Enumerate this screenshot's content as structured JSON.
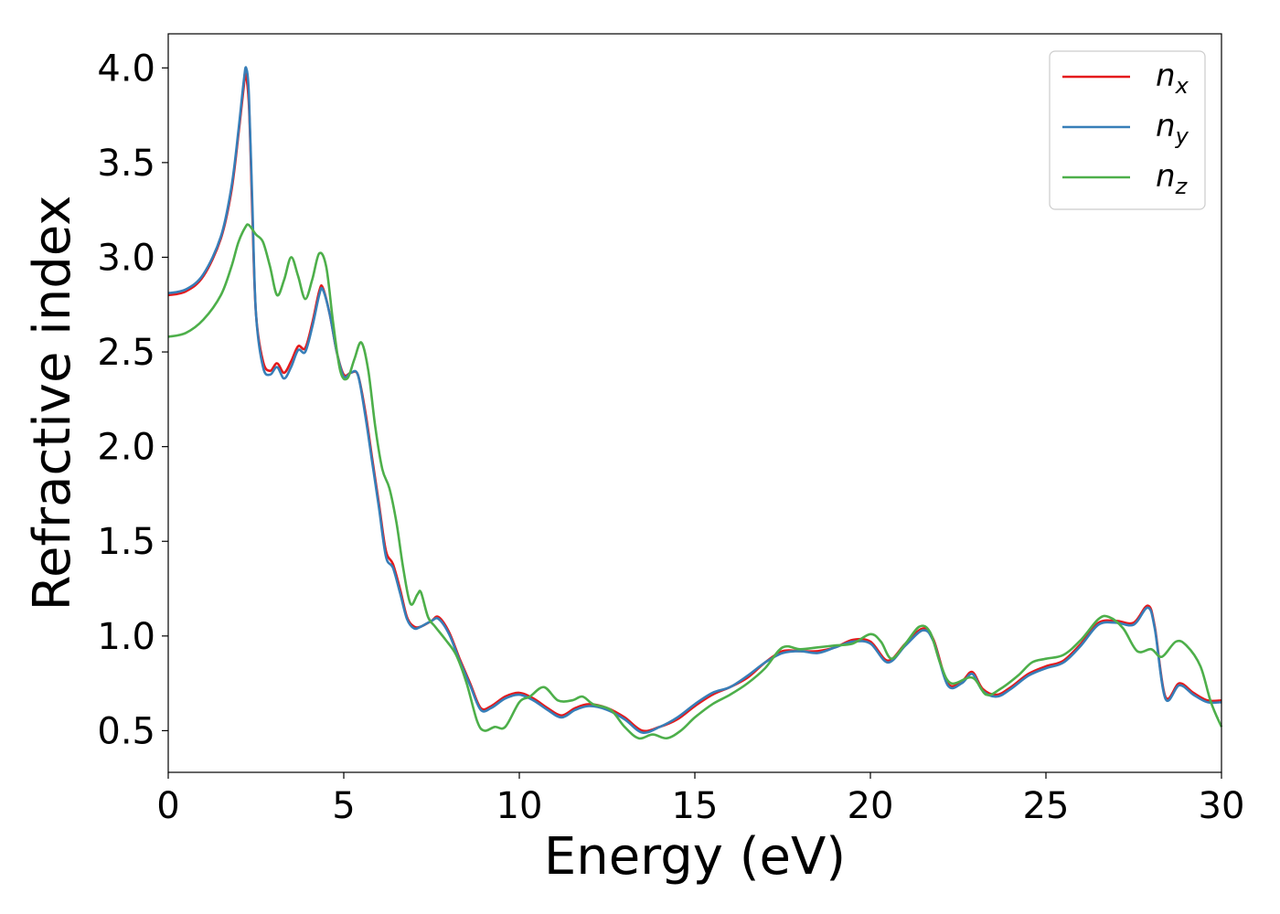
{
  "chart_data": {
    "type": "line",
    "xlabel": "Energy (eV)",
    "ylabel": "Refractive index",
    "xlim": [
      0,
      30
    ],
    "ylim": [
      0.28,
      4.18
    ],
    "xticks": [
      0,
      5,
      10,
      15,
      20,
      25,
      30
    ],
    "xtick_labels": [
      "0",
      "5",
      "10",
      "15",
      "20",
      "25",
      "30"
    ],
    "yticks": [
      0.5,
      1.0,
      1.5,
      2.0,
      2.5,
      3.0,
      3.5,
      4.0
    ],
    "ytick_labels": [
      "0.5",
      "1.0",
      "1.5",
      "2.0",
      "2.5",
      "3.0",
      "3.5",
      "4.0"
    ],
    "grid": false,
    "legend_position": "top-right",
    "series": [
      {
        "name": "n_x",
        "label_base": "n",
        "label_sub": "x",
        "color": "#e41a1c",
        "points": [
          [
            0,
            2.8
          ],
          [
            0.5,
            2.82
          ],
          [
            1.0,
            2.9
          ],
          [
            1.5,
            3.1
          ],
          [
            1.8,
            3.35
          ],
          [
            2.0,
            3.65
          ],
          [
            2.15,
            3.9
          ],
          [
            2.2,
            3.97
          ],
          [
            2.3,
            3.8
          ],
          [
            2.4,
            3.2
          ],
          [
            2.5,
            2.7
          ],
          [
            2.7,
            2.45
          ],
          [
            2.9,
            2.4
          ],
          [
            3.1,
            2.44
          ],
          [
            3.3,
            2.39
          ],
          [
            3.5,
            2.45
          ],
          [
            3.7,
            2.53
          ],
          [
            3.9,
            2.52
          ],
          [
            4.1,
            2.65
          ],
          [
            4.3,
            2.82
          ],
          [
            4.4,
            2.84
          ],
          [
            4.6,
            2.7
          ],
          [
            4.8,
            2.5
          ],
          [
            5.0,
            2.38
          ],
          [
            5.2,
            2.39
          ],
          [
            5.4,
            2.38
          ],
          [
            5.6,
            2.2
          ],
          [
            5.8,
            1.95
          ],
          [
            6.0,
            1.7
          ],
          [
            6.2,
            1.45
          ],
          [
            6.4,
            1.38
          ],
          [
            6.6,
            1.25
          ],
          [
            6.8,
            1.1
          ],
          [
            7.0,
            1.05
          ],
          [
            7.2,
            1.05
          ],
          [
            7.5,
            1.08
          ],
          [
            7.7,
            1.1
          ],
          [
            8.0,
            1.02
          ],
          [
            8.3,
            0.88
          ],
          [
            8.6,
            0.75
          ],
          [
            8.9,
            0.62
          ],
          [
            9.2,
            0.63
          ],
          [
            9.6,
            0.68
          ],
          [
            10.0,
            0.7
          ],
          [
            10.4,
            0.67
          ],
          [
            10.8,
            0.62
          ],
          [
            11.2,
            0.58
          ],
          [
            11.6,
            0.62
          ],
          [
            12.0,
            0.64
          ],
          [
            12.5,
            0.62
          ],
          [
            13.0,
            0.57
          ],
          [
            13.5,
            0.5
          ],
          [
            14.0,
            0.52
          ],
          [
            14.5,
            0.56
          ],
          [
            15.0,
            0.63
          ],
          [
            15.5,
            0.69
          ],
          [
            16.0,
            0.73
          ],
          [
            16.5,
            0.78
          ],
          [
            17.0,
            0.86
          ],
          [
            17.5,
            0.92
          ],
          [
            18.0,
            0.92
          ],
          [
            18.5,
            0.92
          ],
          [
            19.0,
            0.94
          ],
          [
            19.5,
            0.98
          ],
          [
            20.0,
            0.97
          ],
          [
            20.5,
            0.87
          ],
          [
            21.0,
            0.96
          ],
          [
            21.5,
            1.04
          ],
          [
            21.8,
            0.98
          ],
          [
            22.2,
            0.75
          ],
          [
            22.6,
            0.76
          ],
          [
            22.9,
            0.81
          ],
          [
            23.2,
            0.72
          ],
          [
            23.6,
            0.69
          ],
          [
            24.0,
            0.73
          ],
          [
            24.5,
            0.8
          ],
          [
            25.0,
            0.84
          ],
          [
            25.5,
            0.87
          ],
          [
            26.0,
            0.96
          ],
          [
            26.5,
            1.07
          ],
          [
            27.0,
            1.08
          ],
          [
            27.5,
            1.07
          ],
          [
            27.9,
            1.16
          ],
          [
            28.1,
            1.05
          ],
          [
            28.4,
            0.68
          ],
          [
            28.8,
            0.75
          ],
          [
            29.2,
            0.7
          ],
          [
            29.6,
            0.66
          ],
          [
            30.0,
            0.66
          ]
        ]
      },
      {
        "name": "n_y",
        "label_base": "n",
        "label_sub": "y",
        "color": "#377eb8",
        "points": [
          [
            0,
            2.81
          ],
          [
            0.5,
            2.83
          ],
          [
            1.0,
            2.91
          ],
          [
            1.5,
            3.11
          ],
          [
            1.8,
            3.37
          ],
          [
            2.0,
            3.67
          ],
          [
            2.15,
            3.93
          ],
          [
            2.22,
            4.0
          ],
          [
            2.3,
            3.85
          ],
          [
            2.4,
            3.25
          ],
          [
            2.5,
            2.7
          ],
          [
            2.7,
            2.42
          ],
          [
            2.9,
            2.38
          ],
          [
            3.1,
            2.42
          ],
          [
            3.3,
            2.36
          ],
          [
            3.5,
            2.42
          ],
          [
            3.7,
            2.51
          ],
          [
            3.9,
            2.5
          ],
          [
            4.1,
            2.63
          ],
          [
            4.3,
            2.8
          ],
          [
            4.4,
            2.83
          ],
          [
            4.6,
            2.7
          ],
          [
            4.8,
            2.5
          ],
          [
            5.0,
            2.37
          ],
          [
            5.2,
            2.39
          ],
          [
            5.4,
            2.38
          ],
          [
            5.6,
            2.18
          ],
          [
            5.8,
            1.93
          ],
          [
            6.0,
            1.68
          ],
          [
            6.2,
            1.42
          ],
          [
            6.4,
            1.36
          ],
          [
            6.6,
            1.23
          ],
          [
            6.8,
            1.09
          ],
          [
            7.0,
            1.04
          ],
          [
            7.2,
            1.05
          ],
          [
            7.5,
            1.08
          ],
          [
            7.7,
            1.09
          ],
          [
            8.0,
            1.01
          ],
          [
            8.3,
            0.87
          ],
          [
            8.6,
            0.74
          ],
          [
            8.9,
            0.61
          ],
          [
            9.2,
            0.62
          ],
          [
            9.6,
            0.67
          ],
          [
            10.0,
            0.69
          ],
          [
            10.4,
            0.66
          ],
          [
            10.8,
            0.61
          ],
          [
            11.2,
            0.57
          ],
          [
            11.6,
            0.61
          ],
          [
            12.0,
            0.63
          ],
          [
            12.5,
            0.61
          ],
          [
            13.0,
            0.56
          ],
          [
            13.5,
            0.49
          ],
          [
            14.0,
            0.52
          ],
          [
            14.5,
            0.57
          ],
          [
            15.0,
            0.64
          ],
          [
            15.5,
            0.7
          ],
          [
            16.0,
            0.73
          ],
          [
            16.5,
            0.79
          ],
          [
            17.0,
            0.86
          ],
          [
            17.5,
            0.91
          ],
          [
            18.0,
            0.92
          ],
          [
            18.5,
            0.91
          ],
          [
            19.0,
            0.94
          ],
          [
            19.5,
            0.97
          ],
          [
            20.0,
            0.96
          ],
          [
            20.5,
            0.86
          ],
          [
            21.0,
            0.95
          ],
          [
            21.5,
            1.03
          ],
          [
            21.8,
            0.97
          ],
          [
            22.2,
            0.74
          ],
          [
            22.6,
            0.75
          ],
          [
            22.9,
            0.8
          ],
          [
            23.2,
            0.71
          ],
          [
            23.6,
            0.68
          ],
          [
            24.0,
            0.72
          ],
          [
            24.5,
            0.79
          ],
          [
            25.0,
            0.83
          ],
          [
            25.5,
            0.86
          ],
          [
            26.0,
            0.95
          ],
          [
            26.5,
            1.06
          ],
          [
            27.0,
            1.07
          ],
          [
            27.5,
            1.06
          ],
          [
            27.9,
            1.15
          ],
          [
            28.1,
            1.04
          ],
          [
            28.4,
            0.67
          ],
          [
            28.8,
            0.74
          ],
          [
            29.2,
            0.69
          ],
          [
            29.6,
            0.65
          ],
          [
            30.0,
            0.65
          ]
        ]
      },
      {
        "name": "n_z",
        "label_base": "n",
        "label_sub": "z",
        "color": "#4daf4a",
        "points": [
          [
            0,
            2.58
          ],
          [
            0.5,
            2.6
          ],
          [
            1.0,
            2.67
          ],
          [
            1.5,
            2.8
          ],
          [
            1.8,
            2.95
          ],
          [
            2.0,
            3.08
          ],
          [
            2.2,
            3.16
          ],
          [
            2.3,
            3.17
          ],
          [
            2.5,
            3.12
          ],
          [
            2.7,
            3.08
          ],
          [
            2.9,
            2.95
          ],
          [
            3.1,
            2.8
          ],
          [
            3.3,
            2.88
          ],
          [
            3.5,
            3.0
          ],
          [
            3.7,
            2.9
          ],
          [
            3.9,
            2.78
          ],
          [
            4.1,
            2.88
          ],
          [
            4.3,
            3.02
          ],
          [
            4.5,
            2.95
          ],
          [
            4.7,
            2.65
          ],
          [
            4.9,
            2.4
          ],
          [
            5.1,
            2.36
          ],
          [
            5.3,
            2.46
          ],
          [
            5.5,
            2.55
          ],
          [
            5.7,
            2.4
          ],
          [
            5.9,
            2.1
          ],
          [
            6.1,
            1.88
          ],
          [
            6.3,
            1.78
          ],
          [
            6.5,
            1.6
          ],
          [
            6.7,
            1.35
          ],
          [
            6.9,
            1.17
          ],
          [
            7.1,
            1.22
          ],
          [
            7.2,
            1.23
          ],
          [
            7.4,
            1.1
          ],
          [
            7.6,
            1.05
          ],
          [
            7.9,
            0.98
          ],
          [
            8.2,
            0.9
          ],
          [
            8.5,
            0.75
          ],
          [
            8.8,
            0.55
          ],
          [
            9.0,
            0.5
          ],
          [
            9.3,
            0.52
          ],
          [
            9.6,
            0.52
          ],
          [
            10.0,
            0.65
          ],
          [
            10.3,
            0.68
          ],
          [
            10.7,
            0.73
          ],
          [
            11.1,
            0.66
          ],
          [
            11.5,
            0.66
          ],
          [
            11.8,
            0.68
          ],
          [
            12.1,
            0.64
          ],
          [
            12.6,
            0.61
          ],
          [
            13.0,
            0.52
          ],
          [
            13.4,
            0.46
          ],
          [
            13.8,
            0.48
          ],
          [
            14.2,
            0.46
          ],
          [
            14.6,
            0.5
          ],
          [
            15.0,
            0.57
          ],
          [
            15.5,
            0.64
          ],
          [
            16.0,
            0.69
          ],
          [
            16.5,
            0.75
          ],
          [
            17.0,
            0.83
          ],
          [
            17.5,
            0.94
          ],
          [
            18.0,
            0.93
          ],
          [
            18.5,
            0.94
          ],
          [
            19.0,
            0.95
          ],
          [
            19.5,
            0.96
          ],
          [
            20.0,
            1.01
          ],
          [
            20.3,
            0.97
          ],
          [
            20.6,
            0.88
          ],
          [
            21.0,
            0.96
          ],
          [
            21.4,
            1.05
          ],
          [
            21.7,
            1.02
          ],
          [
            22.0,
            0.85
          ],
          [
            22.3,
            0.75
          ],
          [
            22.9,
            0.78
          ],
          [
            23.3,
            0.69
          ],
          [
            23.7,
            0.72
          ],
          [
            24.2,
            0.79
          ],
          [
            24.6,
            0.86
          ],
          [
            25.0,
            0.88
          ],
          [
            25.5,
            0.9
          ],
          [
            26.0,
            0.98
          ],
          [
            26.5,
            1.09
          ],
          [
            26.8,
            1.1
          ],
          [
            27.2,
            1.04
          ],
          [
            27.6,
            0.92
          ],
          [
            28.0,
            0.93
          ],
          [
            28.3,
            0.89
          ],
          [
            28.7,
            0.97
          ],
          [
            29.0,
            0.95
          ],
          [
            29.4,
            0.84
          ],
          [
            29.7,
            0.65
          ],
          [
            30.0,
            0.52
          ]
        ]
      }
    ]
  }
}
